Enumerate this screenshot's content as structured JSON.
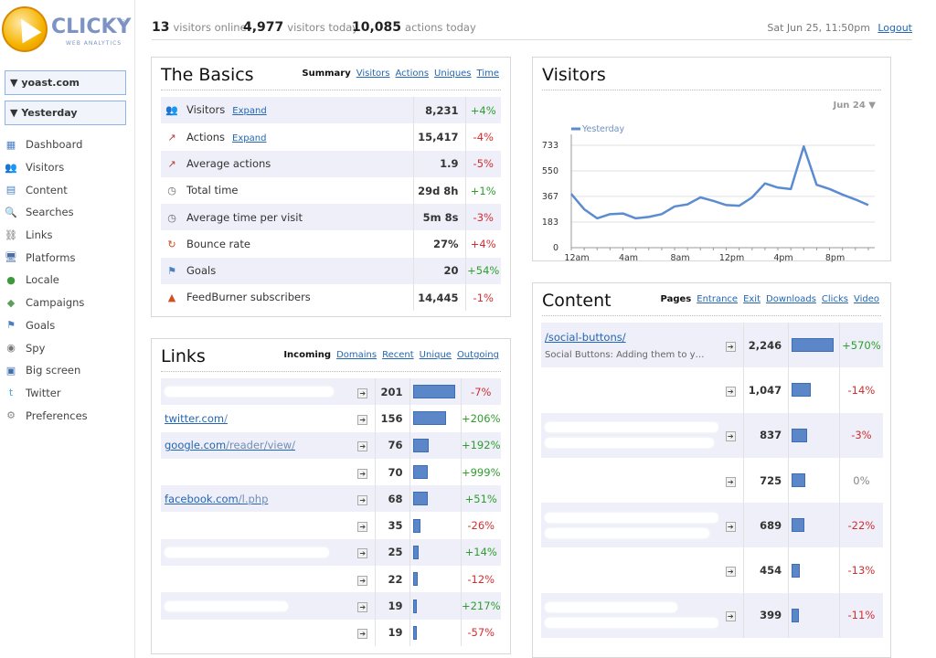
{
  "brand": {
    "name": "CLICKY",
    "tagline": "WEB ANALYTICS",
    "reg": "®"
  },
  "site": "yoast.com",
  "period": "Yesterday",
  "nav": [
    {
      "label": "Dashboard",
      "icon": "dashboard-icon"
    },
    {
      "label": "Visitors",
      "icon": "visitors-icon"
    },
    {
      "label": "Content",
      "icon": "content-icon"
    },
    {
      "label": "Searches",
      "icon": "search-icon"
    },
    {
      "label": "Links",
      "icon": "links-icon"
    },
    {
      "label": "Platforms",
      "icon": "platforms-icon"
    },
    {
      "label": "Locale",
      "icon": "globe-icon"
    },
    {
      "label": "Campaigns",
      "icon": "campaigns-icon"
    },
    {
      "label": "Goals",
      "icon": "goals-icon"
    },
    {
      "label": "Spy",
      "icon": "eye-icon"
    },
    {
      "label": "Big screen",
      "icon": "screen-icon"
    },
    {
      "label": "Twitter",
      "icon": "twitter-icon"
    },
    {
      "label": "Preferences",
      "icon": "gear-icon"
    }
  ],
  "header": {
    "online_count": "13",
    "online_label": "visitors online",
    "today_count": "4,977",
    "today_label": "visitors today",
    "actions_count": "10,085",
    "actions_label": "actions today",
    "datetime": "Sat Jun 25, 11:50pm",
    "logout": "Logout"
  },
  "basics": {
    "title": "The Basics",
    "tabs": [
      "Summary",
      "Visitors",
      "Actions",
      "Uniques",
      "Time"
    ],
    "expand": "Expand",
    "rows": [
      {
        "label": "Visitors",
        "value": "8,231",
        "change": "+4%",
        "dir": "up",
        "expand": true,
        "icon": "visitors-icon"
      },
      {
        "label": "Actions",
        "value": "15,417",
        "change": "-4%",
        "dir": "down",
        "expand": true,
        "icon": "actions-icon"
      },
      {
        "label": "Average actions",
        "value": "1.9",
        "change": "-5%",
        "dir": "down",
        "expand": false,
        "icon": "actions-icon"
      },
      {
        "label": "Total time",
        "value": "29d 8h",
        "change": "+1%",
        "dir": "up",
        "expand": false,
        "icon": "clock-icon"
      },
      {
        "label": "Average time per visit",
        "value": "5m 8s",
        "change": "-3%",
        "dir": "down",
        "expand": false,
        "icon": "clock-icon"
      },
      {
        "label": "Bounce rate",
        "value": "27%",
        "change": "+4%",
        "dir": "down",
        "expand": false,
        "icon": "bounce-icon"
      },
      {
        "label": "Goals",
        "value": "20",
        "change": "+54%",
        "dir": "up",
        "expand": false,
        "icon": "goals-icon"
      },
      {
        "label": "FeedBurner subscribers",
        "value": "14,445",
        "change": "-1%",
        "dir": "down",
        "expand": false,
        "icon": "feedburner-icon"
      }
    ]
  },
  "visitors_chart": {
    "title": "Visitors",
    "date_select": "Jun 24 ▼",
    "legend": "Yesterday"
  },
  "chart_data": {
    "type": "line",
    "title": "Visitors",
    "ylim": [
      0,
      733
    ],
    "yticks": [
      "0",
      "183",
      "367",
      "550",
      "733"
    ],
    "ytick_values": [
      0,
      183,
      367,
      550,
      733
    ],
    "xtick_labels": [
      "12am",
      "4am",
      "8am",
      "12pm",
      "4pm",
      "8pm"
    ],
    "xtick_hours": [
      0,
      4,
      8,
      12,
      16,
      20
    ],
    "grid": true,
    "series": [
      {
        "name": "Yesterday",
        "color": "#5b8bd0",
        "x": [
          0,
          1,
          2,
          3,
          4,
          5,
          6,
          7,
          8,
          9,
          10,
          11,
          12,
          13,
          14,
          15,
          16,
          17,
          18,
          19,
          20,
          21,
          22,
          23
        ],
        "values": [
          385,
          275,
          210,
          240,
          245,
          210,
          220,
          240,
          295,
          310,
          360,
          335,
          305,
          300,
          360,
          460,
          430,
          420,
          725,
          450,
          420,
          380,
          345,
          305
        ]
      }
    ]
  },
  "links": {
    "title": "Links",
    "tabs": [
      "Incoming",
      "Domains",
      "Recent",
      "Unique",
      "Outgoing"
    ],
    "rows": [
      {
        "domain": "",
        "path": "",
        "blur": 185,
        "value": "201",
        "bar": 1.0,
        "change": "-7%",
        "dir": "down"
      },
      {
        "domain": "twitter.com",
        "path": "/",
        "blur": 0,
        "value": "156",
        "bar": 0.776,
        "change": "+206%",
        "dir": "up"
      },
      {
        "domain": "google.com",
        "path": "/reader/view/",
        "blur": 0,
        "value": "76",
        "bar": 0.378,
        "change": "+192%",
        "dir": "up"
      },
      {
        "domain": "",
        "path": "",
        "blur": 0,
        "value": "70",
        "bar": 0.348,
        "change": "+999%",
        "dir": "up"
      },
      {
        "domain": "facebook.com",
        "path": "/l.php",
        "blur": 0,
        "value": "68",
        "bar": 0.338,
        "change": "+51%",
        "dir": "up"
      },
      {
        "domain": "",
        "path": "",
        "blur": 0,
        "value": "35",
        "bar": 0.174,
        "change": "-26%",
        "dir": "down"
      },
      {
        "domain": "",
        "path": "",
        "blur": 180,
        "value": "25",
        "bar": 0.124,
        "change": "+14%",
        "dir": "up"
      },
      {
        "domain": "",
        "path": "",
        "blur": 0,
        "value": "22",
        "bar": 0.109,
        "change": "-12%",
        "dir": "down"
      },
      {
        "domain": "",
        "path": "",
        "blur": 135,
        "value": "19",
        "bar": 0.095,
        "change": "+217%",
        "dir": "up"
      },
      {
        "domain": "",
        "path": "",
        "blur": 0,
        "value": "19",
        "bar": 0.095,
        "change": "-57%",
        "dir": "down"
      }
    ]
  },
  "content": {
    "title": "Content",
    "tabs": [
      "Pages",
      "Entrance",
      "Exit",
      "Downloads",
      "Clicks",
      "Video"
    ],
    "rows": [
      {
        "path": "/social-buttons/",
        "desc": "Social Buttons: Adding them to y…",
        "value": "2,246",
        "bar": 1.0,
        "change": "+570%",
        "dir": "up"
      },
      {
        "path": "",
        "desc": "",
        "value": "1,047",
        "bar": 0.466,
        "change": "-14%",
        "dir": "down"
      },
      {
        "path": "",
        "desc": "",
        "value": "837",
        "bar": 0.373,
        "change": "-3%",
        "dir": "down"
      },
      {
        "path": "",
        "desc": "",
        "value": "725",
        "bar": 0.323,
        "change": "0%",
        "dir": "zero"
      },
      {
        "path": "",
        "desc": "",
        "value": "689",
        "bar": 0.307,
        "change": "-22%",
        "dir": "down"
      },
      {
        "path": "",
        "desc": "",
        "value": "454",
        "bar": 0.202,
        "change": "-13%",
        "dir": "down"
      },
      {
        "path": "",
        "desc": "",
        "value": "399",
        "bar": 0.178,
        "change": "-11%",
        "dir": "down"
      }
    ]
  }
}
